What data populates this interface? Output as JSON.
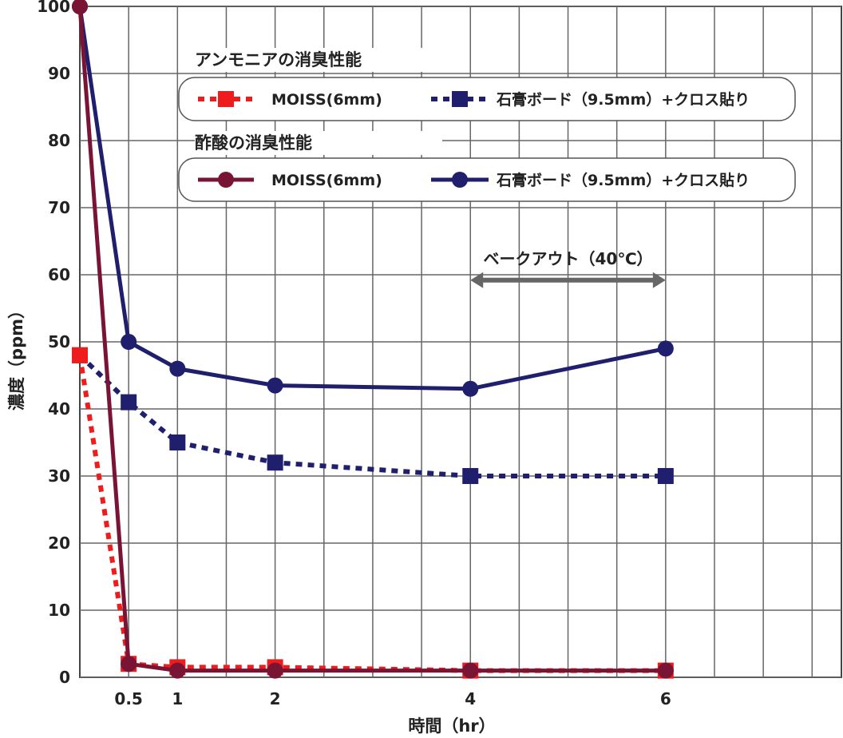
{
  "chart_data": {
    "type": "line",
    "xlabel": "時間（hr）",
    "ylabel": "濃度（ppm）",
    "xlim": [
      0,
      7.8
    ],
    "ylim": [
      0,
      100
    ],
    "x_ticks": [
      0.5,
      1,
      2,
      4,
      6
    ],
    "y_ticks": [
      0,
      10,
      20,
      30,
      40,
      50,
      60,
      70,
      80,
      90,
      100
    ],
    "grid": true,
    "legend_groups": [
      {
        "heading": "アンモニアの消臭性能",
        "series_indices": [
          0,
          1
        ]
      },
      {
        "heading": "酢酸の消臭性能",
        "series_indices": [
          2,
          3
        ]
      }
    ],
    "series": [
      {
        "name": "MOISS(6mm)",
        "group": "アンモニア",
        "color": "#ee1c1c",
        "marker": "square",
        "line": "dotted",
        "x": [
          0,
          0.5,
          1,
          2,
          4,
          6
        ],
        "y": [
          48,
          2,
          1.5,
          1.5,
          1,
          1
        ]
      },
      {
        "name": "石膏ボード（9.5mm）+クロス貼り",
        "group": "アンモニア",
        "color": "#1f1f6e",
        "marker": "square",
        "line": "dotted",
        "x": [
          0,
          0.5,
          1,
          2,
          4,
          6
        ],
        "y": [
          48,
          41,
          35,
          32,
          30,
          30
        ]
      },
      {
        "name": "MOISS(6mm)",
        "group": "酢酸",
        "color": "#7a1434",
        "marker": "circle",
        "line": "solid",
        "x": [
          0,
          0.5,
          1,
          2,
          4,
          6
        ],
        "y": [
          100,
          2,
          1,
          1,
          1,
          1
        ]
      },
      {
        "name": "石膏ボード（9.5mm）+クロス貼り",
        "group": "酢酸",
        "color": "#1f1f6e",
        "marker": "circle",
        "line": "solid",
        "x": [
          0,
          0.5,
          1,
          2,
          4,
          6
        ],
        "y": [
          100,
          50,
          46,
          43.5,
          43,
          49
        ]
      }
    ],
    "annotations": [
      {
        "text": "ベークアウト（40℃）",
        "x_from": 4,
        "x_to": 6,
        "y": 63,
        "color": "#666666"
      }
    ]
  }
}
